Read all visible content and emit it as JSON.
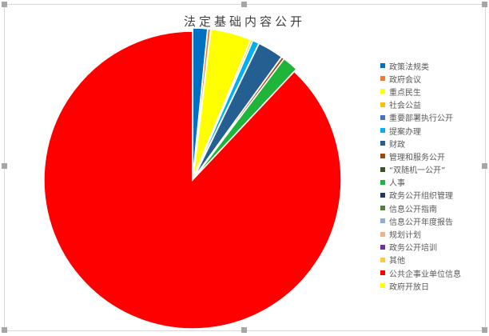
{
  "chart_data": {
    "type": "pie",
    "title": "法定基础内容公开",
    "legend_position": "right",
    "categories": [
      "政策法规类",
      "政府会议",
      "重点民生",
      "社会公益",
      "重要部署执行公开",
      "提案办理",
      "财政",
      "管理和服务公开",
      "“双随机一公开”",
      "人事",
      "政务公开组织管理",
      "信息公开指南",
      "信息公开年度报告",
      "规划计划",
      "政务公开培训",
      "其他",
      "公共企事业单位信息",
      "政府开放日"
    ],
    "values": [
      16,
      3,
      44,
      2,
      0,
      7,
      28,
      3,
      0,
      17,
      0,
      0,
      0,
      0,
      0,
      0,
      880,
      0
    ],
    "colors": [
      "#0070c0",
      "#ed7d31",
      "#ffff00",
      "#ffc000",
      "#4472c4",
      "#00b0f0",
      "#255e91",
      "#9e480e",
      "#375623",
      "#1eb53a",
      "#203864",
      "#548235",
      "#8faadc",
      "#f4b183",
      "#7030a0",
      "#ffc83d",
      "#ff0000",
      "#ffff00"
    ]
  }
}
